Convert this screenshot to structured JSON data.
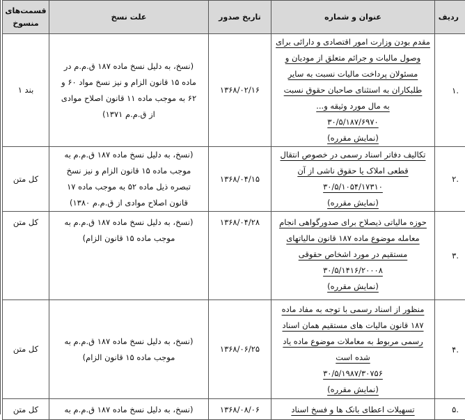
{
  "headers": {
    "radif": "ردیف",
    "title": "عنوان و شماره",
    "date": "تاریخ صدور",
    "reason": "علت نسخ",
    "parts_line1": "قسمت‌های",
    "parts_line2": "منسوخ"
  },
  "rows": [
    {
      "radif": ".۱",
      "title_lines": [
        "مقدم بودن وزارت امور اقتصادی و دارائی برای",
        "وصول مالیات و جرائم متعلق از مودیان و",
        "مسئولان پرداخت مالیات نسبت به سایر",
        "طلبکاران به استثنای صاحبان حقوق نسبت",
        "به مال مورد وثیقه و...",
        "۳۰/۵/۱۸۷/۶۹۷۰",
        "(نمایش مقرره)"
      ],
      "date": "۱۳۶۸/۰۲/۱۶",
      "reason_lines": [
        "(نسخ، به دلیل نسخ ماده ۱۸۷ ق.م.م در",
        "ماده ۱۵ قانون الزام و نیز نسخ مواد ۶۰ و",
        "۶۲ به موجب ماده ۱۱ قانون اصلاح موادی",
        "از ق.م.م ۱۳۷۱)"
      ],
      "parts": "بند ۱"
    },
    {
      "radif": ".۲",
      "title_lines": [
        "تکالیف دفاتر اسناد رسمی در خصوص انتقال",
        "قطعی املاک یا حقوق ناشی از آن",
        "۳۰/۵/۱۰۵۴/۱۷۳۱۰",
        "(نمایش مقرره)"
      ],
      "date": "۱۳۶۸/۰۴/۱۵",
      "reason_lines": [
        "(نسخ، به دلیل نسخ ماده ۱۸۷ ق.م.م به",
        "موجب ماده ۱۵ قانون الزام و نیز نسخ",
        "تبصره ذیل ماده ۵۲ به موجب ماده ۱۷",
        "قانون اصلاح موادی از ق.م.م ۱۳۸۰)"
      ],
      "parts": "کل متن"
    },
    {
      "radif": ".۳",
      "title_lines": [
        "حوزه مالیاتی ذیصلاح برای صدورگواهی انجام",
        "معامله موضوع ماده ۱۸۷ قانون مالیاتهای",
        "مستقیم در مورد اشخاص حقوقی",
        "۳۰/۵/۱۴۱۶/۲۰۰۰۸",
        "(نمایش مقرره)"
      ],
      "date": "۱۳۶۸/۰۴/۲۸",
      "reason_lines": [
        "(نسخ، به دلیل نسخ ماده ۱۸۷ ق.م.م به",
        "موجب ماده ۱۵ قانون الزام)"
      ],
      "parts": "کل متن"
    },
    {
      "radif": ".۴",
      "title_lines": [
        "منظور از اسناد رسمی با توجه به مفاد ماده",
        "۱۸۷ قانون مالیات های مستقیم همان اسناد",
        "رسمی مربوط به معاملات موضوع ماده یاد",
        "شده است",
        "۳۰/۵/۱۹۸۷/۳۰۷۵۶",
        "(نمایش مقرره)"
      ],
      "date": "۱۳۶۸/۰۶/۲۵",
      "reason_lines": [
        "(نسخ، به دلیل نسخ ماده ۱۸۷ ق.م.م به",
        "موجب  ماده ۱۵ قانون الزام)"
      ],
      "parts": "کل متن"
    },
    {
      "radif": ".۵",
      "title_lines": [
        "تسهیلات اعطای بانک ها و فسخ اسناد"
      ],
      "date": "۱۳۶۸/۰۸/۰۶",
      "reason_lines": [
        "(نسخ، به دلیل نسخ ماده ۱۸۷ ق.م.م  به"
      ],
      "parts": "کل متن"
    }
  ]
}
